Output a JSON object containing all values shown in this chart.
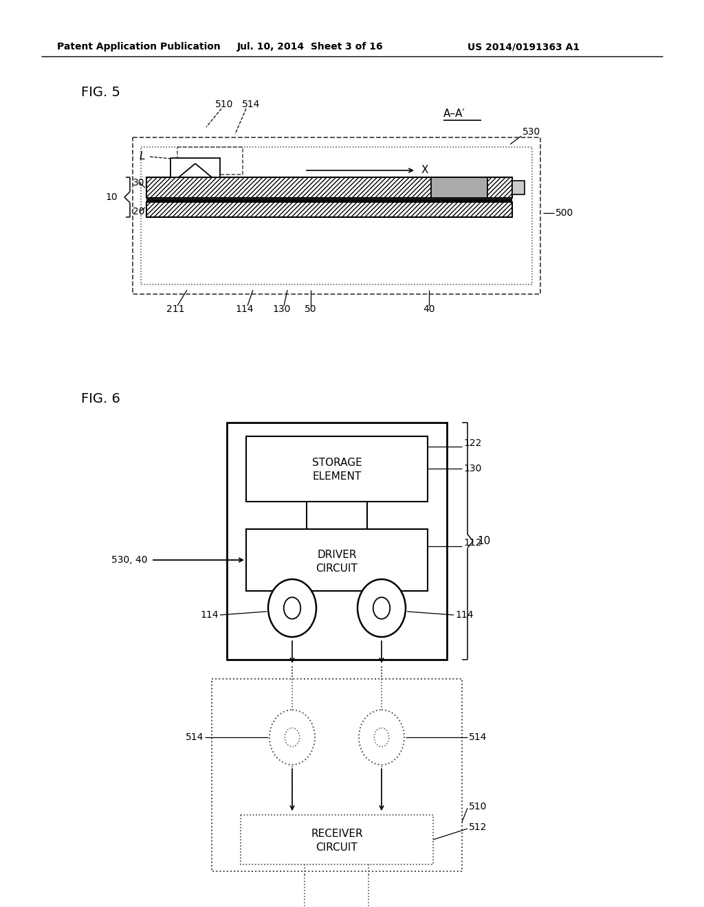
{
  "bg_color": "#ffffff",
  "header_text": "Patent Application Publication",
  "header_date": "Jul. 10, 2014  Sheet 3 of 16",
  "header_patent": "US 2014/0191363 A1",
  "fig5_label": "FIG. 5",
  "fig6_label": "FIG. 6",
  "fig5_aa_label": "A–A′",
  "text_color": "#000000"
}
